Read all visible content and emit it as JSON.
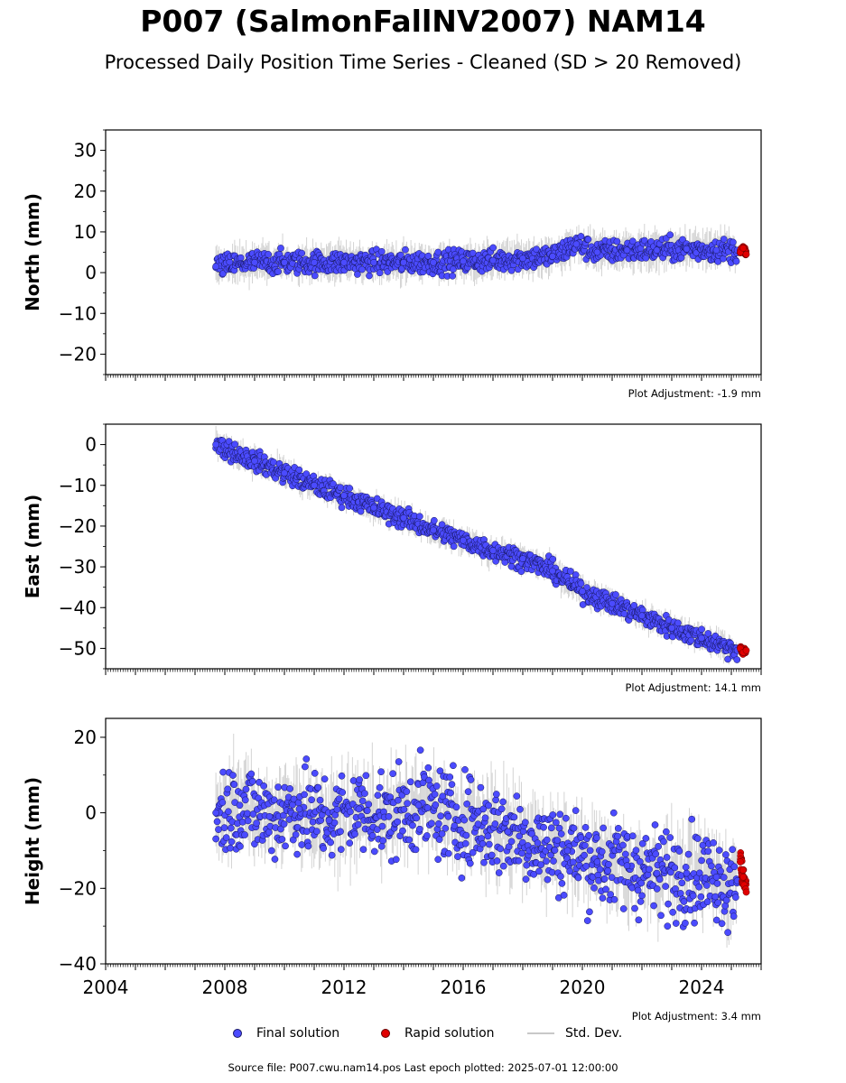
{
  "title": "P007 (SalmonFallNV2007) NAM14",
  "subtitle": "Processed Daily Position Time Series - Cleaned (SD > 20 Removed)",
  "legend": {
    "final": "Final solution",
    "rapid": "Rapid solution",
    "stddev": "Std. Dev."
  },
  "footer": "Source file: P007.cwu.nam14.pos  Last epoch plotted: 2025-07-01 12:00:00",
  "colors": {
    "final": "#4b4bff",
    "rapid": "#e00000",
    "stddev": "#808080"
  },
  "chart_data": [
    {
      "type": "scatter",
      "ylabel": "North (mm)",
      "adjustment": "Plot Adjustment: -1.9 mm",
      "xlim": [
        2004,
        2026
      ],
      "ylim": [
        -25,
        35
      ],
      "yticks": [
        30,
        20,
        10,
        0,
        -10,
        -20
      ],
      "ytick_labels": [
        "30",
        "20",
        "10",
        "0",
        "−10",
        "−20"
      ],
      "series": [
        {
          "name": "Final solution",
          "x": [
            2007.7,
            2009.0,
            2010.0,
            2011.0,
            2012.0,
            2013.0,
            2014.0,
            2015.0,
            2016.0,
            2017.0,
            2018.0,
            2019.0,
            2019.8,
            2020.5,
            2021.5,
            2022.5,
            2023.5,
            2024.5,
            2025.2
          ],
          "y": [
            1.5,
            2.5,
            2.5,
            2.5,
            2.5,
            2.5,
            2.5,
            2.5,
            2.8,
            3.0,
            3.5,
            4.0,
            7.0,
            5.0,
            5.5,
            5.5,
            5.8,
            5.5,
            5.5
          ]
        },
        {
          "name": "Rapid solution",
          "x": [
            2025.3,
            2025.4,
            2025.5
          ],
          "y": [
            5.0,
            6.0,
            4.5
          ]
        }
      ]
    },
    {
      "type": "scatter",
      "ylabel": "East (mm)",
      "adjustment": "Plot Adjustment: 14.1 mm",
      "xlim": [
        2004,
        2026
      ],
      "ylim": [
        -55,
        5
      ],
      "yticks": [
        0,
        -10,
        -20,
        -30,
        -40,
        -50
      ],
      "ytick_labels": [
        "0",
        "−10",
        "−20",
        "−30",
        "−40",
        "−50"
      ],
      "series": [
        {
          "name": "Final solution",
          "x": [
            2007.7,
            2009.0,
            2010.0,
            2011.0,
            2012.0,
            2013.0,
            2014.0,
            2015.0,
            2016.0,
            2017.0,
            2018.0,
            2019.0,
            2020.0,
            2021.0,
            2022.0,
            2023.0,
            2024.0,
            2025.2
          ],
          "y": [
            0.0,
            -4.0,
            -7.0,
            -10.0,
            -12.5,
            -15.5,
            -18.0,
            -21.0,
            -23.5,
            -26.0,
            -28.0,
            -31.0,
            -36.0,
            -39.0,
            -42.0,
            -45.0,
            -47.5,
            -50.5
          ]
        },
        {
          "name": "Rapid solution",
          "x": [
            2025.3,
            2025.4,
            2025.5
          ],
          "y": [
            -50.0,
            -51.0,
            -50.5
          ]
        }
      ]
    },
    {
      "type": "scatter",
      "ylabel": "Height (mm)",
      "adjustment": "Plot Adjustment: 3.4 mm",
      "xlim": [
        2004,
        2026
      ],
      "ylim": [
        -40,
        25
      ],
      "yticks": [
        20,
        0,
        -20,
        -40
      ],
      "ytick_labels": [
        "20",
        "0",
        "−20",
        "−40"
      ],
      "xticks": [
        2004,
        2008,
        2012,
        2016,
        2020,
        2024
      ],
      "xtick_labels": [
        "2004",
        "2008",
        "2012",
        "2016",
        "2020",
        "2024"
      ],
      "series": [
        {
          "name": "Final solution",
          "x": [
            2007.7,
            2008.5,
            2009.5,
            2010.5,
            2011.5,
            2012.5,
            2013.5,
            2014.5,
            2015.5,
            2016.5,
            2017.5,
            2018.5,
            2019.5,
            2020.5,
            2021.5,
            2022.5,
            2023.5,
            2024.5,
            2025.2
          ],
          "y": [
            0.0,
            2.0,
            -1.0,
            1.0,
            -2.0,
            1.0,
            -1.0,
            2.0,
            -1.0,
            -3.0,
            -5.0,
            -8.0,
            -10.0,
            -13.0,
            -14.0,
            -16.0,
            -16.0,
            -17.0,
            -18.0
          ]
        },
        {
          "name": "Rapid solution",
          "x": [
            2025.3,
            2025.4,
            2025.5
          ],
          "y": [
            -13.0,
            -17.0,
            -21.0
          ]
        }
      ]
    }
  ]
}
